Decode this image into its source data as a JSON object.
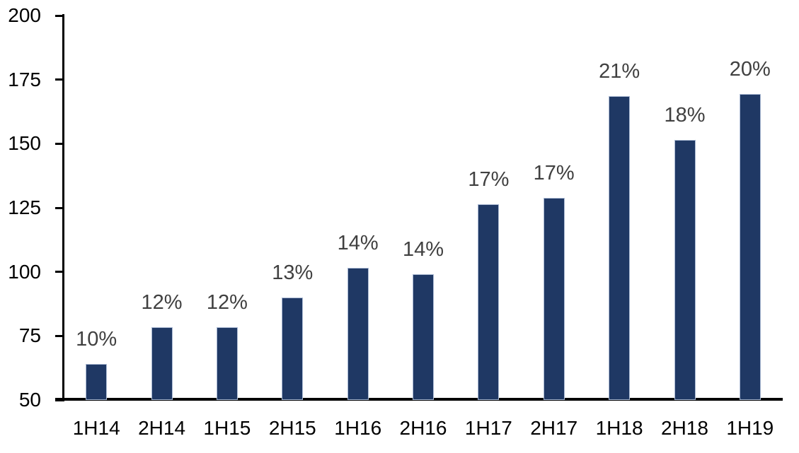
{
  "chart_data": {
    "type": "bar",
    "title": "",
    "xlabel": "",
    "ylabel": "",
    "categories": [
      "1H14",
      "2H14",
      "1H15",
      "2H15",
      "1H16",
      "2H16",
      "1H17",
      "2H17",
      "1H18",
      "2H18",
      "1H19"
    ],
    "values": [
      64,
      78.5,
      78.5,
      90,
      101.5,
      99,
      126.5,
      129,
      168.5,
      151.5,
      169.5
    ],
    "bar_labels": [
      "10%",
      "12%",
      "12%",
      "13%",
      "14%",
      "14%",
      "17%",
      "17%",
      "21%",
      "18%",
      "20%"
    ],
    "ylim": [
      50,
      200
    ],
    "yticks": [
      50,
      75,
      100,
      125,
      150,
      175,
      200
    ],
    "grid": false,
    "legend": "none",
    "colors": {
      "bar_fill": "#1F3864",
      "bar_border": "#AAB9D3",
      "axis": "#000000",
      "data_label": "#404040",
      "tick_label": "#000000",
      "background": "#FFFFFF"
    }
  }
}
